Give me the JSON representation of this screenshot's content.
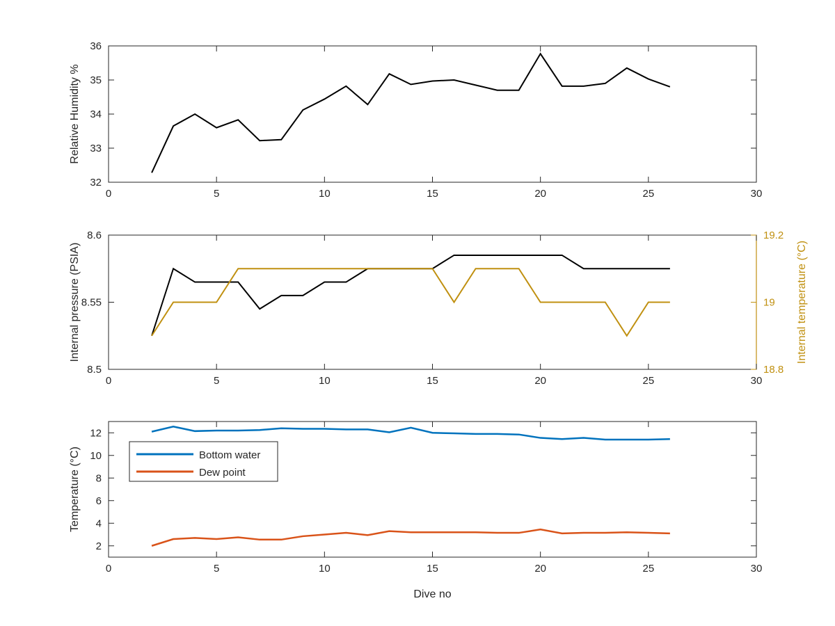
{
  "chart_data": [
    {
      "type": "line",
      "xlabel": "",
      "ylabel": "Relative Humidity %",
      "xlim": [
        0,
        30
      ],
      "ylim": [
        32,
        36
      ],
      "xticks": [
        0,
        5,
        10,
        15,
        20,
        25,
        30
      ],
      "yticks": [
        32,
        33,
        34,
        35,
        36
      ],
      "series": [
        {
          "color": "#000000",
          "x": [
            2,
            3,
            4,
            5,
            6,
            7,
            8,
            9,
            10,
            11,
            12,
            13,
            14,
            15,
            16,
            17,
            18,
            19,
            20,
            21,
            22,
            23,
            24,
            25,
            26
          ],
          "y": [
            32.28,
            33.65,
            34.0,
            33.6,
            33.83,
            33.22,
            33.25,
            34.12,
            34.44,
            34.82,
            34.28,
            35.18,
            34.87,
            34.97,
            35.0,
            34.85,
            34.7,
            34.7,
            35.77,
            34.82,
            34.82,
            34.9,
            35.35,
            35.03,
            34.8
          ]
        }
      ]
    },
    {
      "type": "line",
      "xlabel": "",
      "ylabel": "Internal pressure (PSIA)",
      "ylabel_right": "Internal temperature (°C)",
      "xlim": [
        0,
        30
      ],
      "ylim": [
        8.5,
        8.6
      ],
      "ylim_right": [
        18.8,
        19.2
      ],
      "xticks": [
        0,
        5,
        10,
        15,
        20,
        25,
        30
      ],
      "yticks": [
        8.5,
        8.55,
        8.6
      ],
      "yticks_right": [
        18.8,
        19,
        19.2
      ],
      "series": [
        {
          "color": "#000000",
          "axis": "left",
          "x": [
            2,
            3,
            4,
            5,
            6,
            7,
            8,
            9,
            10,
            11,
            12,
            13,
            14,
            15,
            16,
            17,
            18,
            19,
            20,
            21,
            22,
            23,
            24,
            25,
            26
          ],
          "y": [
            8.525,
            8.575,
            8.565,
            8.565,
            8.565,
            8.545,
            8.555,
            8.555,
            8.565,
            8.565,
            8.575,
            8.575,
            8.575,
            8.575,
            8.585,
            8.585,
            8.585,
            8.585,
            8.585,
            8.585,
            8.575,
            8.575,
            8.575,
            8.575,
            8.575
          ]
        },
        {
          "color": "#c09010",
          "axis": "right",
          "x": [
            2,
            3,
            4,
            5,
            6,
            7,
            8,
            9,
            10,
            11,
            12,
            13,
            14,
            15,
            16,
            17,
            18,
            19,
            20,
            21,
            22,
            23,
            24,
            25,
            26
          ],
          "y": [
            18.9,
            19.0,
            19.0,
            19.0,
            19.1,
            19.1,
            19.1,
            19.1,
            19.1,
            19.1,
            19.1,
            19.1,
            19.1,
            19.1,
            19.0,
            19.1,
            19.1,
            19.1,
            19.0,
            19.0,
            19.0,
            19.0,
            18.9,
            19.0,
            19.0
          ]
        }
      ]
    },
    {
      "type": "line",
      "xlabel": "Dive no",
      "ylabel": "Temperature (°C)",
      "xlim": [
        0,
        30
      ],
      "ylim": [
        1,
        13
      ],
      "xticks": [
        0,
        5,
        10,
        15,
        20,
        25,
        30
      ],
      "yticks": [
        2,
        4,
        6,
        8,
        10,
        12
      ],
      "legend": "top-left",
      "series": [
        {
          "name": "Bottom water",
          "color": "#0072bd",
          "x": [
            2,
            3,
            4,
            5,
            6,
            7,
            8,
            9,
            10,
            11,
            12,
            13,
            14,
            15,
            16,
            17,
            18,
            19,
            20,
            21,
            22,
            23,
            24,
            25,
            26
          ],
          "y": [
            12.1,
            12.55,
            12.15,
            12.2,
            12.2,
            12.25,
            12.4,
            12.35,
            12.35,
            12.3,
            12.3,
            12.05,
            12.45,
            12.0,
            11.95,
            11.9,
            11.9,
            11.85,
            11.55,
            11.45,
            11.55,
            11.4,
            11.4,
            11.4,
            11.45
          ]
        },
        {
          "name": "Dew point",
          "color": "#d95319",
          "x": [
            2,
            3,
            4,
            5,
            6,
            7,
            8,
            9,
            10,
            11,
            12,
            13,
            14,
            15,
            16,
            17,
            18,
            19,
            20,
            21,
            22,
            23,
            24,
            25,
            26
          ],
          "y": [
            2.0,
            2.6,
            2.7,
            2.6,
            2.75,
            2.55,
            2.55,
            2.85,
            3.0,
            3.15,
            2.95,
            3.3,
            3.2,
            3.2,
            3.2,
            3.2,
            3.15,
            3.15,
            3.45,
            3.1,
            3.15,
            3.15,
            3.2,
            3.15,
            3.1
          ]
        }
      ]
    }
  ]
}
